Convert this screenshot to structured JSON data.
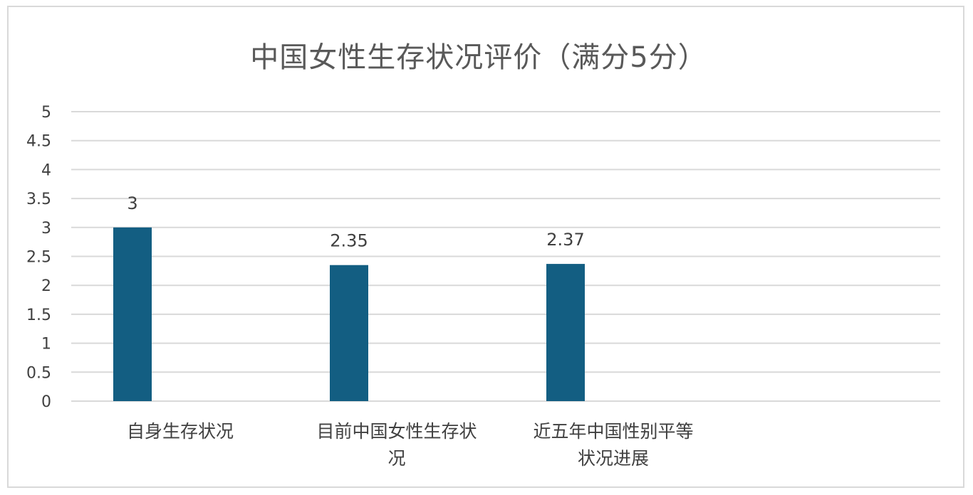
{
  "chart_data": {
    "type": "bar",
    "title": "中国女性生存状况评价（满分5分）",
    "categories": [
      [
        "自身生存状况"
      ],
      [
        "目前中国女性生存状",
        "况"
      ],
      [
        "近五年中国性别平等",
        "状况进展"
      ]
    ],
    "values": [
      3,
      2.35,
      2.37
    ],
    "data_labels": [
      "3",
      "2.35",
      "2.37"
    ],
    "ylim": [
      0,
      5
    ],
    "yticks": [
      "0",
      "0.5",
      "1",
      "1.5",
      "2",
      "2.5",
      "3",
      "3.5",
      "4",
      "4.5",
      "5"
    ],
    "xlabel": "",
    "ylabel": "",
    "grid": true,
    "legend": "none",
    "bar_color": "#135E82",
    "grid_color": "#d9d9d9"
  }
}
